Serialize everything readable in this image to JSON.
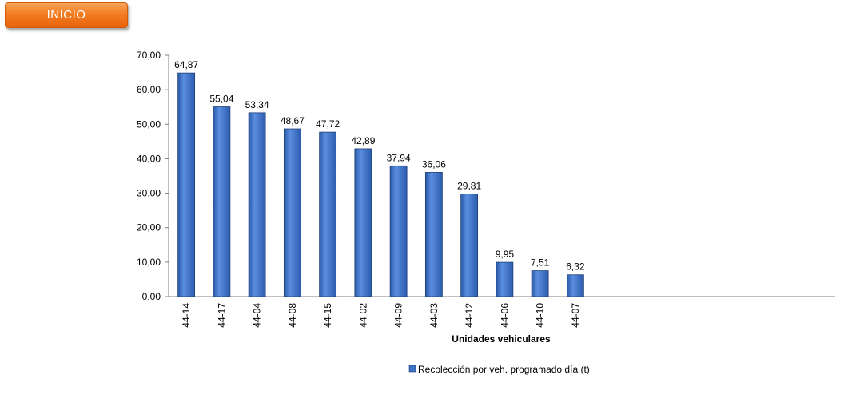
{
  "button": {
    "label": "INICIO"
  },
  "chart_data": {
    "type": "bar",
    "categories": [
      "44-14",
      "44-17",
      "44-04",
      "44-08",
      "44-15",
      "44-02",
      "44-09",
      "44-03",
      "44-12",
      "44-06",
      "44-10",
      "44-07"
    ],
    "series": [
      {
        "name": "Recolección por veh. programado día (t)",
        "values": [
          64.87,
          55.04,
          53.34,
          48.67,
          47.72,
          42.89,
          37.94,
          36.06,
          29.81,
          9.95,
          7.51,
          6.32
        ],
        "labels": [
          "64,87",
          "55,04",
          "53,34",
          "48,67",
          "47,72",
          "42,89",
          "37,94",
          "36,06",
          "29,81",
          "9,95",
          "7,51",
          "6,32"
        ]
      }
    ],
    "xlabel": "Unidades vehiculares",
    "ylabel": "",
    "ylim": [
      0,
      70
    ],
    "yticks": [
      "0,00",
      "10,00",
      "20,00",
      "30,00",
      "40,00",
      "50,00",
      "60,00",
      "70,00"
    ],
    "grid": false,
    "legend": "bottom",
    "bar_color": "#3f73c6",
    "bar_edge_color": "#1f3f78"
  }
}
